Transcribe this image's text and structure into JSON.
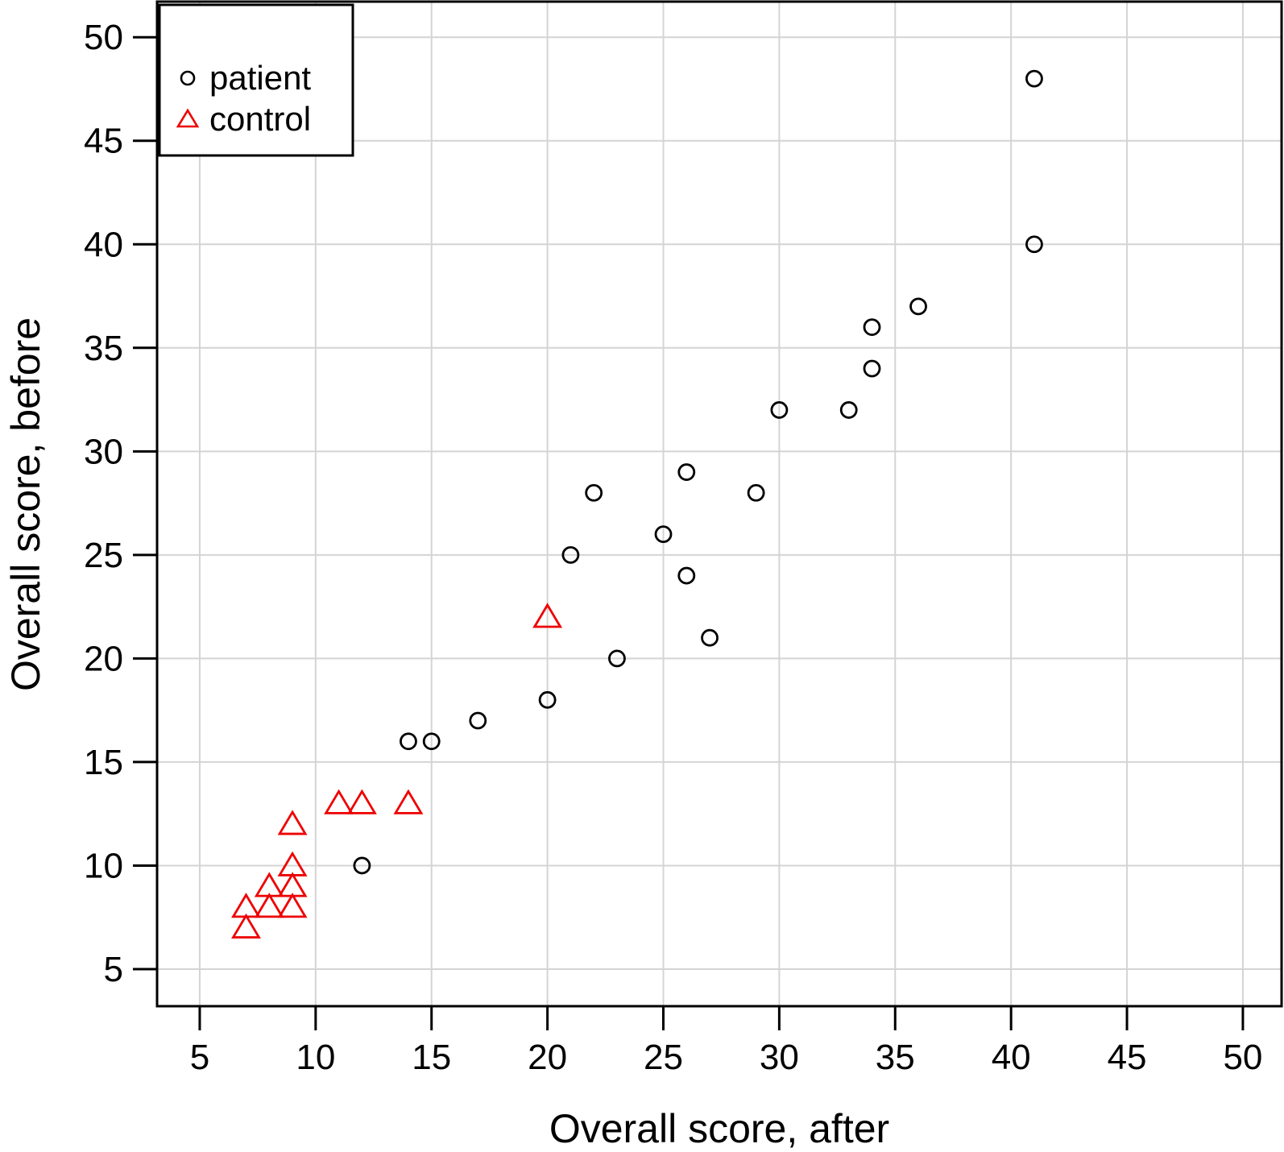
{
  "figure": {
    "background": "#ffffff",
    "border_color": "#000000",
    "text_color": "#000000"
  },
  "chart_data": {
    "type": "scatter",
    "title": "",
    "xlabel": "Overall score, after",
    "ylabel": "Overall score, before",
    "xlim": [
      3.16,
      51.67
    ],
    "ylim": [
      3.21,
      51.72
    ],
    "xticks": [
      5,
      10,
      15,
      20,
      25,
      30,
      35,
      40,
      45,
      50
    ],
    "yticks": [
      5,
      10,
      15,
      20,
      25,
      30,
      35,
      40,
      45,
      50
    ],
    "grid": true,
    "grid_color": "#d4d4d4",
    "legend_position": "top-left",
    "series": [
      {
        "name": "patient",
        "marker": "circle",
        "color": "#000000",
        "points": [
          [
            12,
            10
          ],
          [
            14,
            16
          ],
          [
            15,
            16
          ],
          [
            17,
            17
          ],
          [
            20,
            18
          ],
          [
            21,
            25
          ],
          [
            22,
            28
          ],
          [
            23,
            20
          ],
          [
            25,
            26
          ],
          [
            26,
            24
          ],
          [
            26,
            29
          ],
          [
            27,
            21
          ],
          [
            29,
            28
          ],
          [
            30,
            32
          ],
          [
            33,
            32
          ],
          [
            34,
            34
          ],
          [
            34,
            36
          ],
          [
            36,
            37
          ],
          [
            41,
            40
          ],
          [
            41,
            48
          ]
        ]
      },
      {
        "name": "control",
        "marker": "triangle",
        "color": "#ee0000",
        "points": [
          [
            7,
            7
          ],
          [
            7,
            8
          ],
          [
            8,
            8
          ],
          [
            8,
            9
          ],
          [
            9,
            8
          ],
          [
            9,
            9
          ],
          [
            9,
            10
          ],
          [
            9,
            12
          ],
          [
            11,
            13
          ],
          [
            12,
            13
          ],
          [
            14,
            13
          ],
          [
            20,
            22
          ]
        ]
      }
    ]
  },
  "legend": {
    "items": [
      {
        "label": "patient",
        "marker": "circle",
        "color": "#000000"
      },
      {
        "label": "control",
        "marker": "triangle",
        "color": "#ee0000"
      }
    ]
  }
}
